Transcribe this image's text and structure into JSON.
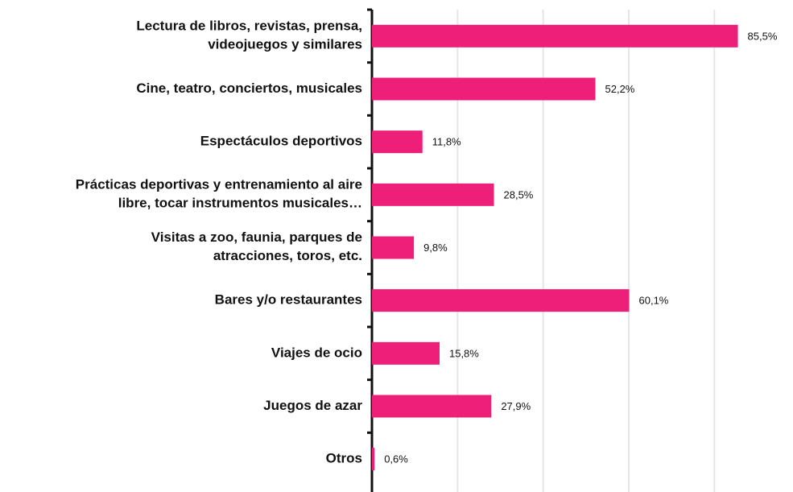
{
  "chart_data": {
    "type": "bar",
    "orientation": "horizontal",
    "categories": [
      "Lectura de libros, revistas, prensa,\nvideojuegos y similares",
      "Cine, teatro, conciertos, musicales",
      "Espectáculos deportivos",
      "Prácticas deportivas y entrenamiento al aire\nlibre, tocar instrumentos musicales…",
      "Visitas a zoo, faunia, parques de\natracciones, toros, etc.",
      "Bares y/o restaurantes",
      "Viajes de ocio",
      "Juegos de azar",
      "Otros"
    ],
    "values": [
      85.5,
      52.2,
      11.8,
      28.5,
      9.8,
      60.1,
      15.8,
      27.9,
      0.6
    ],
    "value_labels": [
      "85,5%",
      "52,2%",
      "11,8%",
      "28,5%",
      "9,8%",
      "60,1%",
      "15,8%",
      "27,9%",
      "0,6%"
    ],
    "color": "#ee1f78",
    "xlim": [
      0,
      98
    ],
    "xticks": [
      20,
      40,
      60,
      80
    ],
    "grid": true
  }
}
